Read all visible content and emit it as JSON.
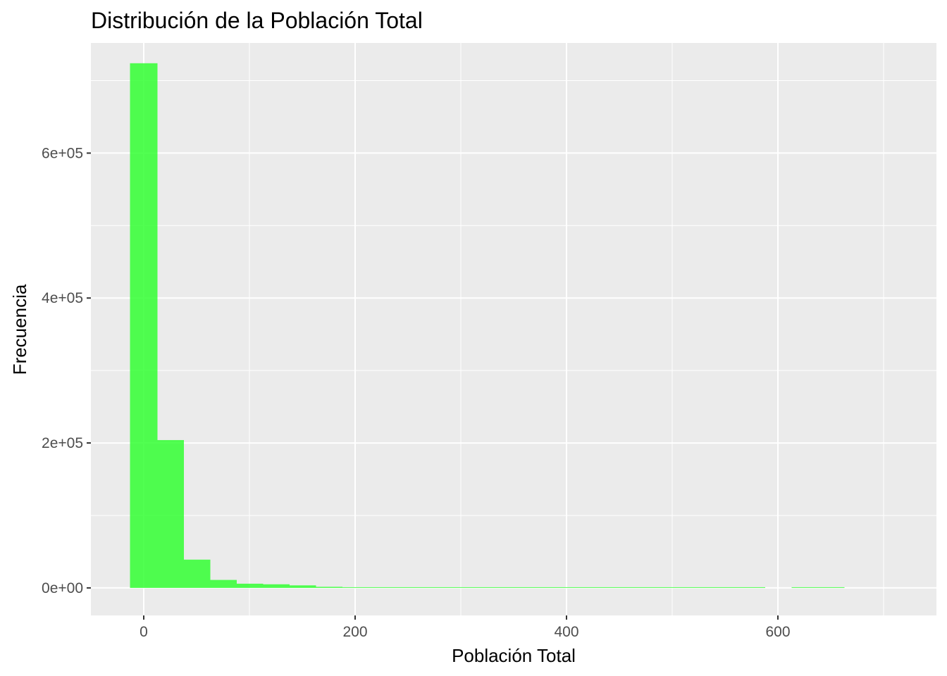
{
  "chart_data": {
    "type": "bar",
    "title": "Distribución de la Población Total",
    "xlabel": "Población Total",
    "ylabel": "Frecuencia",
    "bar_color": "#33ff33",
    "panel_color": "#ebebeb",
    "grid": true,
    "legend": "none",
    "xlim": [
      -50,
      750
    ],
    "ylim": [
      -38000,
      752000
    ],
    "x_ticks": [
      {
        "value": 0,
        "label": "0"
      },
      {
        "value": 200,
        "label": "200"
      },
      {
        "value": 400,
        "label": "400"
      },
      {
        "value": 600,
        "label": "600"
      }
    ],
    "y_ticks": [
      {
        "value": 0,
        "label": "0e+00"
      },
      {
        "value": 200000,
        "label": "2e+05"
      },
      {
        "value": 400000,
        "label": "4e+05"
      },
      {
        "value": 600000,
        "label": "6e+05"
      }
    ],
    "bins": [
      {
        "x0": -13,
        "x1": 13,
        "count": 724000
      },
      {
        "x0": 13,
        "x1": 38,
        "count": 204000
      },
      {
        "x0": 38,
        "x1": 63,
        "count": 39000
      },
      {
        "x0": 63,
        "x1": 88,
        "count": 11000
      },
      {
        "x0": 88,
        "x1": 113,
        "count": 5800
      },
      {
        "x0": 113,
        "x1": 138,
        "count": 5000
      },
      {
        "x0": 138,
        "x1": 163,
        "count": 3500
      },
      {
        "x0": 163,
        "x1": 188,
        "count": 1500
      },
      {
        "x0": 188,
        "x1": 213,
        "count": 600
      },
      {
        "x0": 213,
        "x1": 238,
        "count": 300
      },
      {
        "x0": 238,
        "x1": 263,
        "count": 200
      },
      {
        "x0": 263,
        "x1": 288,
        "count": 150
      },
      {
        "x0": 288,
        "x1": 313,
        "count": 120
      },
      {
        "x0": 313,
        "x1": 338,
        "count": 100
      },
      {
        "x0": 338,
        "x1": 363,
        "count": 80
      },
      {
        "x0": 363,
        "x1": 388,
        "count": 70
      },
      {
        "x0": 388,
        "x1": 413,
        "count": 60
      },
      {
        "x0": 413,
        "x1": 438,
        "count": 50
      },
      {
        "x0": 438,
        "x1": 463,
        "count": 45
      },
      {
        "x0": 463,
        "x1": 488,
        "count": 40
      },
      {
        "x0": 488,
        "x1": 513,
        "count": 35
      },
      {
        "x0": 513,
        "x1": 538,
        "count": 30
      },
      {
        "x0": 538,
        "x1": 563,
        "count": 25
      },
      {
        "x0": 563,
        "x1": 588,
        "count": 20
      },
      {
        "x0": 588,
        "x1": 613,
        "count": 0
      },
      {
        "x0": 613,
        "x1": 638,
        "count": 10
      },
      {
        "x0": 638,
        "x1": 663,
        "count": 10
      }
    ]
  }
}
